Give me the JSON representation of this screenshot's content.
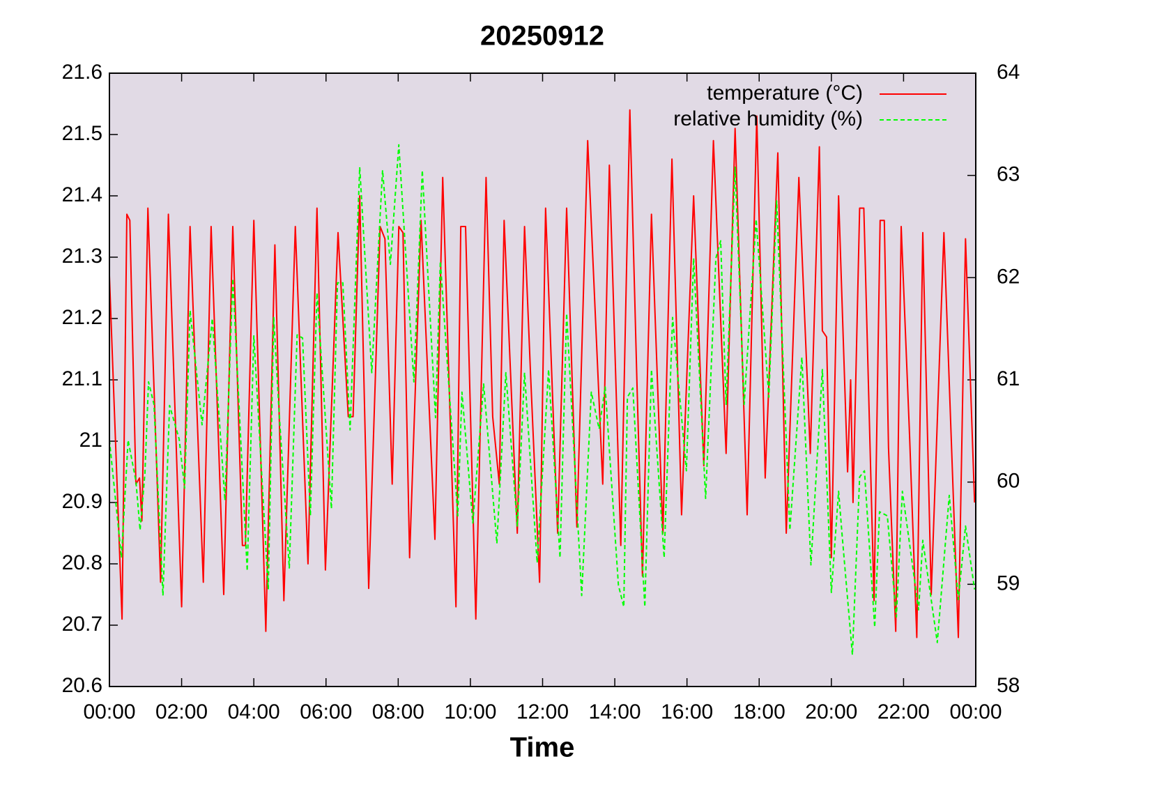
{
  "chart_data": {
    "type": "line",
    "title": "20250912",
    "xlabel": "Time",
    "xlim": [
      0,
      1440
    ],
    "xticks": [
      {
        "value": 0,
        "label": "00:00"
      },
      {
        "value": 120,
        "label": "02:00"
      },
      {
        "value": 240,
        "label": "04:00"
      },
      {
        "value": 360,
        "label": "06:00"
      },
      {
        "value": 480,
        "label": "08:00"
      },
      {
        "value": 600,
        "label": "10:00"
      },
      {
        "value": 720,
        "label": "12:00"
      },
      {
        "value": 840,
        "label": "14:00"
      },
      {
        "value": 960,
        "label": "16:00"
      },
      {
        "value": 1080,
        "label": "18:00"
      },
      {
        "value": 1200,
        "label": "20:00"
      },
      {
        "value": 1320,
        "label": "22:00"
      },
      {
        "value": 1440,
        "label": "00:00"
      }
    ],
    "ylim": [
      20.6,
      21.6
    ],
    "yticks": [
      20.6,
      20.7,
      20.8,
      20.9,
      21,
      21.1,
      21.2,
      21.3,
      21.4,
      21.5,
      21.6
    ],
    "y2lim": [
      58,
      64
    ],
    "y2ticks": [
      58,
      59,
      60,
      61,
      62,
      63,
      64
    ],
    "background": "#e1dae5",
    "legend": "top right",
    "series": [
      {
        "name": "temperature (°C)",
        "color": "#ff0000",
        "dash": false,
        "x": [
          0,
          21,
          29,
          34,
          44,
          50,
          54,
          64,
          85,
          98,
          120,
          134,
          156,
          169,
          190,
          205,
          221,
          226,
          240,
          260,
          275,
          290,
          309,
          330,
          345,
          359,
          380,
          397,
          405,
          416,
          431,
          450,
          458,
          470,
          481,
          488,
          499,
          518,
          541,
          554,
          576,
          584,
          592,
          609,
          626,
          637,
          648,
          656,
          678,
          690,
          700,
          715,
          725,
          745,
          760,
          777,
          795,
          820,
          831,
          850,
          865,
          877,
          886,
          901,
          920,
          935,
          951,
          971,
          988,
          1004,
          1025,
          1040,
          1060,
          1076,
          1090,
          1111,
          1125,
          1146,
          1165,
          1180,
          1185,
          1192,
          1200,
          1212,
          1227,
          1232,
          1236,
          1247,
          1254,
          1271,
          1281,
          1288,
          1295,
          1307,
          1316,
          1330,
          1342,
          1352,
          1366,
          1387,
          1411,
          1423,
          1438
        ],
        "values": [
          21.27,
          20.71,
          21.37,
          21.36,
          20.93,
          20.94,
          20.87,
          21.38,
          20.77,
          21.37,
          20.73,
          21.35,
          20.77,
          21.35,
          20.75,
          21.35,
          20.83,
          20.83,
          21.36,
          20.69,
          21.32,
          20.74,
          21.35,
          20.8,
          21.38,
          20.79,
          21.34,
          21.04,
          21.04,
          21.4,
          20.76,
          21.35,
          21.33,
          20.93,
          21.35,
          21.34,
          20.81,
          21.36,
          20.84,
          21.43,
          20.73,
          21.35,
          21.35,
          20.71,
          21.43,
          21.04,
          20.93,
          21.36,
          20.85,
          21.35,
          21.11,
          20.77,
          21.38,
          20.85,
          21.38,
          20.86,
          21.49,
          20.93,
          21.45,
          20.83,
          21.54,
          21.09,
          20.78,
          21.37,
          20.85,
          21.46,
          20.88,
          21.4,
          20.96,
          21.49,
          20.98,
          21.51,
          20.88,
          21.53,
          20.94,
          21.47,
          20.85,
          21.43,
          20.98,
          21.48,
          21.18,
          21.17,
          20.81,
          21.4,
          20.95,
          21.1,
          20.9,
          21.38,
          21.38,
          20.74,
          21.36,
          21.36,
          20.99,
          20.69,
          21.35,
          21.01,
          20.68,
          21.34,
          20.75,
          21.34,
          20.68,
          21.33,
          20.9
        ]
      },
      {
        "name": "relative humidity (%)",
        "color": "#00ff00",
        "dash": true,
        "axis": "y2",
        "x": [
          0,
          20,
          31,
          44,
          51,
          59,
          65,
          74,
          89,
          100,
          116,
          125,
          134,
          154,
          171,
          192,
          205,
          229,
          240,
          264,
          273,
          282,
          299,
          312,
          321,
          334,
          345,
          369,
          379,
          388,
          400,
          416,
          436,
          454,
          467,
          481,
          506,
          520,
          542,
          550,
          579,
          586,
          604,
          622,
          644,
          659,
          678,
          690,
          711,
          730,
          749,
          760,
          785,
          801,
          814,
          824,
          846,
          855,
          861,
          870,
          890,
          901,
          922,
          936,
          959,
          971,
          991,
          1008,
          1016,
          1025,
          1040,
          1055,
          1075,
          1096,
          1109,
          1131,
          1151,
          1166,
          1185,
          1200,
          1212,
          1218,
          1235,
          1247,
          1255,
          1272,
          1280,
          1293,
          1308,
          1318,
          1345,
          1352,
          1376,
          1396,
          1411,
          1423,
          1438
        ],
        "values": [
          60.41,
          59.26,
          60.41,
          60.01,
          59.53,
          60.08,
          60.98,
          60.76,
          58.89,
          60.75,
          60.42,
          59.94,
          61.68,
          60.56,
          61.6,
          59.82,
          61.99,
          59.13,
          61.43,
          58.95,
          61.61,
          60.69,
          59.16,
          61.44,
          61.41,
          59.67,
          61.85,
          59.74,
          61.95,
          61.95,
          60.51,
          63.08,
          61.07,
          63.05,
          62.13,
          63.3,
          60.98,
          63.05,
          60.63,
          62.16,
          59.67,
          60.88,
          59.6,
          60.96,
          59.4,
          61.07,
          59.57,
          61.07,
          59.21,
          61.1,
          59.26,
          61.65,
          58.89,
          60.88,
          60.52,
          60.93,
          58.99,
          58.78,
          60.83,
          60.92,
          58.78,
          61.1,
          59.26,
          61.61,
          60.11,
          62.19,
          59.84,
          62.19,
          62.36,
          60.76,
          63.08,
          60.76,
          62.57,
          60.83,
          62.75,
          59.53,
          61.22,
          59.19,
          61.1,
          58.92,
          59.91,
          59.47,
          58.31,
          60.05,
          60.11,
          58.58,
          59.71,
          59.67,
          58.68,
          59.91,
          58.75,
          59.43,
          58.43,
          59.87,
          58.85,
          59.57,
          58.95
        ]
      }
    ]
  }
}
